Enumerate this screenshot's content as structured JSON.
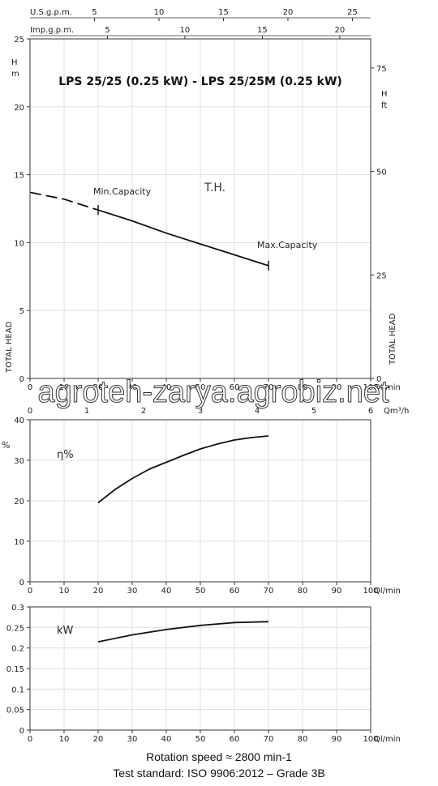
{
  "chart_data": [
    {
      "type": "line",
      "title": "LPS 25/25 (0.25 kW) - LPS 25/25M (0.25 kW)",
      "top_axes": [
        {
          "label": "U.S.g.p.m.",
          "ticks": [
            "5",
            "10",
            "15",
            "20",
            "25"
          ]
        },
        {
          "label": "Imp.g.p.m.",
          "ticks": [
            "5",
            "10",
            "15",
            "20"
          ]
        }
      ],
      "ylabel": "TOTAL HEAD",
      "yunit": "H\nm",
      "ylim": [
        0,
        25
      ],
      "yticks": [
        "0",
        "5",
        "10",
        "15",
        "20",
        "25"
      ],
      "y2label": "TOTAL HEAD",
      "y2unit": "H\nft",
      "y2ticks": [
        "0",
        "25",
        "50",
        "75"
      ],
      "xlabel": "Ql/min",
      "xlim": [
        0,
        100
      ],
      "xticks": [
        "0",
        "10",
        "20",
        "30",
        "40",
        "50",
        "60",
        "70",
        "80",
        "90",
        "100"
      ],
      "x2label": "Qm³/h",
      "x2ticks": [
        "0",
        "1",
        "2",
        "3",
        "4",
        "5",
        "6"
      ],
      "series": [
        {
          "name": "T.H.",
          "x": [
            0,
            10,
            20,
            30,
            40,
            50,
            60,
            70
          ],
          "y": [
            13.7,
            13.2,
            12.4,
            11.6,
            10.7,
            9.9,
            9.1,
            8.3
          ]
        }
      ],
      "annotations": [
        "Min.Capacity",
        "Max.Capacity"
      ],
      "grid": true
    },
    {
      "type": "line",
      "ylim": [
        0,
        40
      ],
      "yticks": [
        "0",
        "10",
        "20",
        "30",
        "40"
      ],
      "yunit": "%",
      "xlabel": "Ql/min",
      "xlim": [
        0,
        100
      ],
      "xticks": [
        "0",
        "10",
        "20",
        "30",
        "40",
        "50",
        "60",
        "70",
        "80",
        "90",
        "100"
      ],
      "series": [
        {
          "name": "η%",
          "x": [
            20,
            25,
            30,
            35,
            40,
            45,
            50,
            55,
            60,
            65,
            70
          ],
          "y": [
            19.5,
            22.8,
            25.5,
            27.8,
            29.5,
            31.2,
            32.8,
            34.0,
            35.0,
            35.6,
            36.0
          ]
        }
      ],
      "grid": true
    },
    {
      "type": "line",
      "ylim": [
        0,
        0.3
      ],
      "yticks": [
        "0",
        "0.05",
        "0.1",
        "0.15",
        "0.2",
        "0.25",
        "0.3"
      ],
      "xlabel": "Ql/min",
      "xlim": [
        0,
        100
      ],
      "xticks": [
        "0",
        "10",
        "20",
        "30",
        "40",
        "50",
        "60",
        "70",
        "80",
        "90",
        "100"
      ],
      "series": [
        {
          "name": "kW",
          "x": [
            20,
            30,
            40,
            50,
            60,
            70
          ],
          "y": [
            0.215,
            0.232,
            0.245,
            0.255,
            0.262,
            0.264
          ]
        }
      ],
      "grid": true
    }
  ],
  "footer": {
    "line1": "Rotation speed ≈ 2800 min-1",
    "line2": "Test standard: ISO 9906:2012 – Grade 3B"
  },
  "watermark": "agroteh-zarya.agrobiz.net",
  "colors": {
    "curve": "#111111",
    "grid": "#d9d9d9",
    "axis": "#333333"
  }
}
